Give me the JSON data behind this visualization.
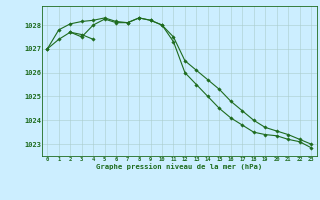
{
  "xlabel": "Graphe pression niveau de la mer (hPa)",
  "hours": [
    0,
    1,
    2,
    3,
    4,
    5,
    6,
    7,
    8,
    9,
    10,
    11,
    12,
    13,
    14,
    15,
    16,
    17,
    18,
    19,
    20,
    21,
    22,
    23
  ],
  "series1": [
    1027.0,
    1027.4,
    1027.7,
    1027.5,
    1028.0,
    1028.25,
    1028.1,
    1028.1,
    1028.3,
    1028.2,
    1028.0,
    1027.5,
    1026.5,
    1026.1,
    1025.7,
    1025.3,
    1024.8,
    1024.4,
    1024.0,
    1023.7,
    1023.55,
    1023.4,
    1023.2,
    1023.0
  ],
  "series2": [
    1027.0,
    1027.8,
    1028.05,
    1028.15,
    1028.2,
    1028.3,
    1028.15,
    1028.1,
    1028.3,
    1028.2,
    1028.0,
    1027.3,
    1026.0,
    1025.5,
    1025.0,
    1024.5,
    1024.1,
    1023.8,
    1023.5,
    1023.4,
    1023.35,
    1023.2,
    1023.1,
    1022.85
  ],
  "series3": [
    null,
    null,
    1027.7,
    1027.6,
    1027.4,
    null,
    null,
    null,
    null,
    null,
    null,
    null,
    null,
    null,
    null,
    null,
    null,
    null,
    null,
    null,
    null,
    null,
    null,
    null
  ],
  "line_color": "#1e6b1e",
  "bg_color": "#cceeff",
  "grid_color": "#aacccc",
  "ylim": [
    1022.5,
    1028.8
  ],
  "yticks": [
    1023,
    1024,
    1025,
    1026,
    1027,
    1028
  ],
  "xticks": [
    0,
    1,
    2,
    3,
    4,
    5,
    6,
    7,
    8,
    9,
    10,
    11,
    12,
    13,
    14,
    15,
    16,
    17,
    18,
    19,
    20,
    21,
    22,
    23
  ]
}
